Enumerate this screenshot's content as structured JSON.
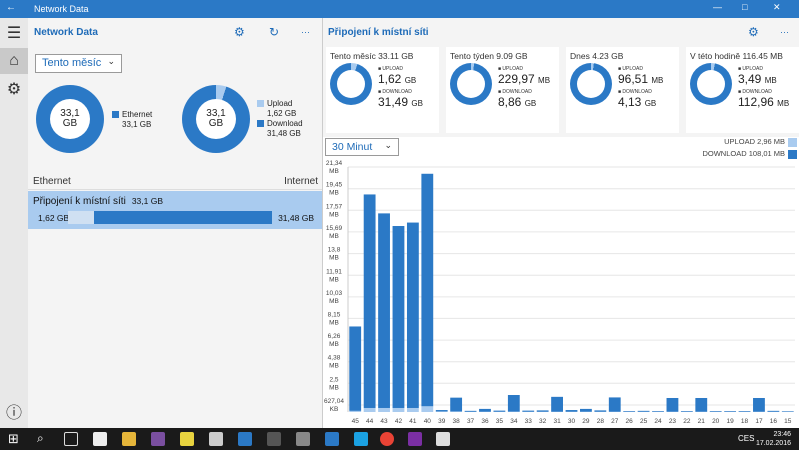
{
  "app": {
    "window_title": "Network Data",
    "back_glyph": "←",
    "minimize_glyph": "—",
    "maximize_glyph": "□",
    "close_glyph": "✕"
  },
  "rail": {
    "menu_glyph": "☰",
    "home_glyph": "⌂",
    "settings_glyph": "⚙",
    "info_glyph": "ⓘ"
  },
  "left": {
    "title": "Network Data",
    "settings_glyph": "⚙",
    "refresh_glyph": "↻",
    "more_glyph": "···",
    "period_select": "Tento měsíc",
    "donut1": {
      "center": "33,1\nGB",
      "legend_name": "Ethernet",
      "legend_value": "33,1 GB",
      "fraction": 1.0
    },
    "donut2": {
      "center": "33,1\nGB",
      "upload_label": "Upload",
      "upload_value": "1,62 GB",
      "download_label": "Download",
      "download_value": "31,48 GB",
      "upload_fraction": 0.049
    },
    "conn_head_left": "Ethernet",
    "conn_head_right": "Internet",
    "connection": {
      "name": "Připojení k místní síti",
      "total": "33,1 GB",
      "up": "1,62 GB",
      "down": "31,48 GB",
      "up_fraction": 0.049
    }
  },
  "right": {
    "title": "Připojení k místní síti",
    "settings_glyph": "⚙",
    "more_glyph": "···",
    "cards": [
      {
        "title": "Tento měsíc 33.11 GB",
        "upload_label": "UPLOAD",
        "upload_value": "1,62",
        "upload_unit": "GB",
        "download_label": "DOWNLOAD",
        "download_value": "31,49",
        "download_unit": "GB",
        "upload_fraction": 0.049
      },
      {
        "title": "Tento týden 9.09 GB",
        "upload_label": "UPLOAD",
        "upload_value": "229,97",
        "upload_unit": "MB",
        "download_label": "DOWNLOAD",
        "download_value": "8,86",
        "download_unit": "GB",
        "upload_fraction": 0.025
      },
      {
        "title": "Dnes 4.23 GB",
        "upload_label": "UPLOAD",
        "upload_value": "96,51",
        "upload_unit": "MB",
        "download_label": "DOWNLOAD",
        "download_value": "4,13",
        "download_unit": "GB",
        "upload_fraction": 0.022
      },
      {
        "title": "V této hodině 116.45 MB",
        "upload_label": "UPLOAD",
        "upload_value": "3,49",
        "upload_unit": "MB",
        "download_label": "DOWNLOAD",
        "download_value": "112,96",
        "download_unit": "MB",
        "upload_fraction": 0.03
      }
    ],
    "interval_select": "30 Minut",
    "legend_upload": "UPLOAD 2,96 MB",
    "legend_download": "DOWNLOAD 108,01 MB"
  },
  "chart_data": {
    "type": "bar",
    "yunit": "MB",
    "ylim": [
      0,
      21.34
    ],
    "yticks": [
      "627,04\nKB",
      "2,5\nMB",
      "4,38\nMB",
      "6,26\nMB",
      "8,15\nMB",
      "10,03\nMB",
      "11,91\nMB",
      "13,8\nMB",
      "15,69\nMB",
      "17,57\nMB",
      "19,45\nMB",
      "21,34\nMB"
    ],
    "ytick_values": [
      0.61,
      2.5,
      4.38,
      6.26,
      8.15,
      10.03,
      11.91,
      13.8,
      15.69,
      17.57,
      19.45,
      21.34
    ],
    "categories": [
      "45",
      "44",
      "43",
      "42",
      "41",
      "40",
      "39",
      "38",
      "37",
      "36",
      "35",
      "34",
      "33",
      "32",
      "31",
      "30",
      "29",
      "28",
      "27",
      "26",
      "25",
      "24",
      "23",
      "22",
      "21",
      "20",
      "19",
      "18",
      "17",
      "16",
      "15"
    ],
    "series": [
      {
        "name": "UPLOAD",
        "values": [
          0.1,
          0.35,
          0.35,
          0.35,
          0.35,
          0.5,
          0.05,
          0.05,
          0.02,
          0.02,
          0.02,
          0.03,
          0.02,
          0.02,
          0.02,
          0.02,
          0.02,
          0.02,
          0.02,
          0.02,
          0.02,
          0.02,
          0.02,
          0.02,
          0.02,
          0.02,
          0.02,
          0.02,
          0.02,
          0.02,
          0.02
        ]
      },
      {
        "name": "DOWNLOAD",
        "values": [
          7.35,
          18.6,
          16.95,
          15.85,
          16.15,
          20.25,
          0.12,
          1.2,
          0.08,
          0.25,
          0.1,
          1.45,
          0.1,
          0.12,
          1.3,
          0.15,
          0.25,
          0.12,
          1.25,
          0.06,
          0.08,
          0.06,
          1.2,
          0.06,
          1.2,
          0.06,
          0.06,
          0.06,
          1.2,
          0.08,
          0.05
        ]
      }
    ]
  },
  "taskbar": {
    "start_glyph": "⊞",
    "search_glyph": "⌕",
    "time": "23:46",
    "date": "17.02.2016",
    "lang": "CES"
  }
}
